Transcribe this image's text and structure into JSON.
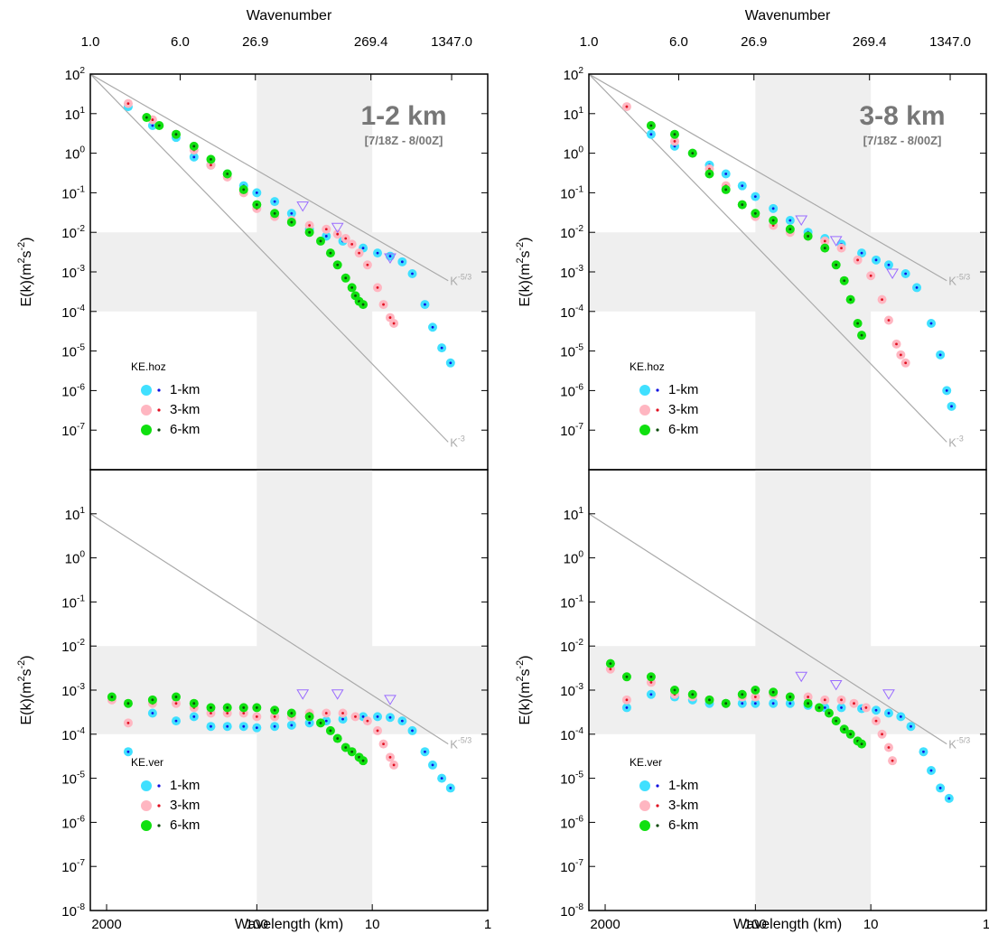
{
  "chart_data": [
    {
      "type": "scatter",
      "title": "1-2 km",
      "subtitle": "[7/18Z - 8/00Z]",
      "x2label": "Wavenumber",
      "ylabel": "E(k)(m^{2}s^{-2})",
      "legend_title": "KE.hoz",
      "xlim": [
        2767,
        1
      ],
      "x2lim": [
        1,
        2767
      ],
      "ylim": [
        1e-08,
        100
      ],
      "log_x": true,
      "log_y": true,
      "x2ticks": [
        {
          "value": 1,
          "label": "1.0"
        },
        {
          "value": 6,
          "label": "6.0"
        },
        26.9,
        269.4,
        {
          "value": 1347,
          "label": "1347.0"
        }
      ],
      "yticks": [
        {
          "value": 1e-07,
          "label": "10^{-7}"
        },
        {
          "value": 1e-06,
          "label": "10^{-6}"
        },
        {
          "value": 1e-05,
          "label": "10^{-5}"
        },
        {
          "value": 0.0001,
          "label": "10^{-4}"
        },
        {
          "value": 0.001,
          "label": "10^{-3}"
        },
        {
          "value": 0.01,
          "label": "10^{-2}"
        },
        {
          "value": 0.1,
          "label": "10^{-1}"
        },
        {
          "value": 1,
          "label": "10^{0}"
        },
        {
          "value": 10,
          "label": "10^{1}"
        },
        {
          "value": 100,
          "label": "10^{2}"
        }
      ],
      "shade_x": [
        100,
        10
      ],
      "shade_y": [
        0.01,
        0.0001
      ],
      "shade_color": "#efefef",
      "reference_lines": [
        {
          "label": "K^{-5/3}",
          "x": [
            2767,
            2.2
          ],
          "y": [
            100,
            0.0006
          ]
        },
        {
          "label": "K^{-3}",
          "x": [
            2767,
            2.2
          ],
          "y": [
            100,
            5e-08
          ]
        }
      ],
      "markers": {
        "color": "#9a6cff",
        "x": [
          40,
          20,
          7
        ],
        "y": [
          0.045,
          0.013,
          0.0022
        ]
      },
      "series": [
        {
          "name": "1-km",
          "color": "#40e0ff",
          "dot_color": "#1010e0",
          "x": [
            1300,
            800,
            500,
            350,
            250,
            180,
            130,
            100,
            70,
            50,
            35,
            25,
            18,
            12,
            9,
            7,
            5.5,
            4.5,
            3.5,
            3,
            2.5,
            2.1
          ],
          "values": [
            15,
            5,
            2.5,
            0.8,
            0.5,
            0.3,
            0.15,
            0.1,
            0.06,
            0.03,
            0.012,
            0.008,
            0.006,
            0.004,
            0.003,
            0.0025,
            0.0018,
            0.0009,
            0.00015,
            4e-05,
            1.2e-05,
            5e-06
          ]
        },
        {
          "name": "3-km",
          "color": "#ffb6c1",
          "dot_color": "#e01020",
          "x": [
            1300,
            800,
            500,
            350,
            250,
            180,
            130,
            100,
            70,
            50,
            35,
            25,
            20,
            17,
            15,
            13,
            11,
            9,
            8,
            7,
            6.5
          ],
          "values": [
            18,
            7,
            3,
            1.2,
            0.5,
            0.25,
            0.1,
            0.04,
            0.025,
            0.02,
            0.015,
            0.012,
            0.009,
            0.007,
            0.005,
            0.003,
            0.0015,
            0.0004,
            0.00015,
            7e-05,
            5e-05
          ]
        },
        {
          "name": "6-km",
          "color": "#10e010",
          "dot_color": "#0a4a0a",
          "x": [
            900,
            700,
            500,
            350,
            250,
            180,
            130,
            100,
            70,
            50,
            35,
            28,
            23,
            20,
            17,
            15,
            14,
            13,
            12
          ],
          "values": [
            8,
            5,
            3,
            1.5,
            0.7,
            0.3,
            0.12,
            0.05,
            0.03,
            0.018,
            0.01,
            0.006,
            0.003,
            0.0015,
            0.0007,
            0.0004,
            0.00025,
            0.00018,
            0.00015
          ]
        }
      ]
    },
    {
      "type": "scatter",
      "title": "3-8 km",
      "subtitle": "[7/18Z - 8/00Z]",
      "x2label": "Wavenumber",
      "ylabel": "E(k)(m^{2}s^{-2})",
      "legend_title": "KE.hoz",
      "xlim": [
        2767,
        1
      ],
      "x2lim": [
        1,
        2767
      ],
      "ylim": [
        1e-08,
        100
      ],
      "log_x": true,
      "log_y": true,
      "x2ticks": [
        {
          "value": 1,
          "label": "1.0"
        },
        {
          "value": 6,
          "label": "6.0"
        },
        26.9,
        269.4,
        {
          "value": 1347,
          "label": "1347.0"
        }
      ],
      "yticks": [
        {
          "value": 1e-07,
          "label": "10^{-7}"
        },
        {
          "value": 1e-06,
          "label": "10^{-6}"
        },
        {
          "value": 1e-05,
          "label": "10^{-5}"
        },
        {
          "value": 0.0001,
          "label": "10^{-4}"
        },
        {
          "value": 0.001,
          "label": "10^{-3}"
        },
        {
          "value": 0.01,
          "label": "10^{-2}"
        },
        {
          "value": 0.1,
          "label": "10^{-1}"
        },
        {
          "value": 1,
          "label": "10^{0}"
        },
        {
          "value": 10,
          "label": "10^{1}"
        },
        {
          "value": 100,
          "label": "10^{2}"
        }
      ],
      "shade_x": [
        100,
        10
      ],
      "shade_y": [
        0.01,
        0.0001
      ],
      "shade_color": "#efefef",
      "reference_lines": [
        {
          "label": "K^{-5/3}",
          "x": [
            2767,
            2.2
          ],
          "y": [
            100,
            0.0006
          ]
        },
        {
          "label": "K^{-3}",
          "x": [
            2767,
            2.2
          ],
          "y": [
            100,
            5e-08
          ]
        }
      ],
      "markers": {
        "color": "#9a6cff",
        "x": [
          40,
          20,
          6.5
        ],
        "y": [
          0.02,
          0.006,
          0.0009
        ]
      },
      "series": [
        {
          "name": "1-km",
          "color": "#40e0ff",
          "dot_color": "#1010e0",
          "x": [
            800,
            500,
            350,
            250,
            180,
            130,
            100,
            70,
            50,
            35,
            25,
            18,
            12,
            9,
            7,
            5,
            4,
            3,
            2.5,
            2.2,
            2
          ],
          "values": [
            3,
            1.5,
            1,
            0.5,
            0.3,
            0.15,
            0.08,
            0.04,
            0.02,
            0.01,
            0.007,
            0.005,
            0.003,
            0.002,
            0.0015,
            0.0009,
            0.0004,
            5e-05,
            8e-06,
            1e-06,
            4e-07
          ]
        },
        {
          "name": "3-km",
          "color": "#ffb6c1",
          "dot_color": "#e01020",
          "x": [
            1300,
            800,
            500,
            350,
            250,
            180,
            130,
            100,
            70,
            50,
            35,
            25,
            18,
            13,
            10,
            8,
            7,
            6,
            5.5,
            5
          ],
          "values": [
            15,
            5,
            2,
            1,
            0.4,
            0.15,
            0.05,
            0.025,
            0.015,
            0.01,
            0.008,
            0.006,
            0.004,
            0.002,
            0.0008,
            0.0002,
            6e-05,
            1.5e-05,
            8e-06,
            5e-06
          ]
        },
        {
          "name": "6-km",
          "color": "#10e010",
          "dot_color": "#0a4a0a",
          "x": [
            800,
            500,
            350,
            250,
            180,
            130,
            100,
            70,
            50,
            35,
            25,
            20,
            17,
            15,
            13,
            12
          ],
          "values": [
            5,
            3,
            1,
            0.3,
            0.12,
            0.05,
            0.03,
            0.02,
            0.012,
            0.008,
            0.004,
            0.0015,
            0.0006,
            0.0002,
            5e-05,
            2.5e-05
          ]
        }
      ]
    },
    {
      "type": "scatter",
      "xlabel": "Wavelength (km)",
      "ylabel": "E(k)(m^{2}s^{-2})",
      "legend_title": "KE.ver",
      "xlim": [
        2767,
        1
      ],
      "ylim": [
        1e-08,
        100
      ],
      "log_x": true,
      "log_y": true,
      "xticks": [
        2000,
        100,
        10,
        1
      ],
      "yticks": [
        {
          "value": 1e-08,
          "label": "10^{-8}"
        },
        {
          "value": 1e-07,
          "label": "10^{-7}"
        },
        {
          "value": 1e-06,
          "label": "10^{-6}"
        },
        {
          "value": 1e-05,
          "label": "10^{-5}"
        },
        {
          "value": 0.0001,
          "label": "10^{-4}"
        },
        {
          "value": 0.001,
          "label": "10^{-3}"
        },
        {
          "value": 0.01,
          "label": "10^{-2}"
        },
        {
          "value": 0.1,
          "label": "10^{-1}"
        },
        {
          "value": 1,
          "label": "10^{0}"
        },
        {
          "value": 10,
          "label": "10^{1}"
        }
      ],
      "shade_x": [
        100,
        10
      ],
      "shade_y": [
        0.01,
        0.0001
      ],
      "shade_color": "#efefef",
      "reference_lines": [
        {
          "label": "K^{-5/3}",
          "x": [
            2767,
            2.2
          ],
          "y": [
            10,
            6e-05
          ]
        }
      ],
      "markers": {
        "color": "#9a6cff",
        "x": [
          40,
          20,
          7
        ],
        "y": [
          0.0008,
          0.0008,
          0.0006
        ]
      },
      "series": [
        {
          "name": "1-km",
          "color": "#40e0ff",
          "dot_color": "#1010e0",
          "x": [
            1300,
            800,
            500,
            350,
            250,
            180,
            130,
            100,
            70,
            50,
            35,
            25,
            18,
            12,
            9,
            7,
            5.5,
            4.5,
            3.5,
            3,
            2.5,
            2.1
          ],
          "values": [
            4e-05,
            0.0003,
            0.0002,
            0.00025,
            0.00015,
            0.00015,
            0.00015,
            0.00014,
            0.00015,
            0.00016,
            0.00018,
            0.0002,
            0.00022,
            0.00025,
            0.00025,
            0.00024,
            0.0002,
            0.00012,
            4e-05,
            2e-05,
            1e-05,
            6e-06
          ]
        },
        {
          "name": "3-km",
          "color": "#ffb6c1",
          "dot_color": "#e01020",
          "x": [
            1800,
            1300,
            800,
            500,
            350,
            250,
            180,
            130,
            100,
            70,
            50,
            35,
            25,
            18,
            14,
            11,
            9,
            8,
            7,
            6.5
          ],
          "values": [
            0.0006,
            0.00018,
            0.0005,
            0.0005,
            0.0004,
            0.0003,
            0.0003,
            0.0003,
            0.00025,
            0.00025,
            0.00025,
            0.0003,
            0.0003,
            0.0003,
            0.00025,
            0.0002,
            0.00012,
            6e-05,
            3e-05,
            2e-05
          ]
        },
        {
          "name": "6-km",
          "color": "#10e010",
          "dot_color": "#0a4a0a",
          "x": [
            1800,
            1300,
            800,
            500,
            350,
            250,
            180,
            130,
            100,
            70,
            50,
            35,
            28,
            23,
            20,
            17,
            15,
            13,
            12
          ],
          "values": [
            0.0007,
            0.0005,
            0.0006,
            0.0007,
            0.0005,
            0.0004,
            0.0004,
            0.0004,
            0.0004,
            0.00035,
            0.0003,
            0.00025,
            0.00018,
            0.00012,
            8e-05,
            5e-05,
            4e-05,
            3e-05,
            2.5e-05
          ]
        }
      ]
    },
    {
      "type": "scatter",
      "xlabel": "Wavelength (km)",
      "ylabel": "E(k)(m^{2}s^{-2})",
      "legend_title": "KE.ver",
      "xlim": [
        2767,
        1
      ],
      "ylim": [
        1e-08,
        100
      ],
      "log_x": true,
      "log_y": true,
      "xticks": [
        2000,
        100,
        10,
        1
      ],
      "yticks": [
        {
          "value": 1e-08,
          "label": "10^{-8}"
        },
        {
          "value": 1e-07,
          "label": "10^{-7}"
        },
        {
          "value": 1e-06,
          "label": "10^{-6}"
        },
        {
          "value": 1e-05,
          "label": "10^{-5}"
        },
        {
          "value": 0.0001,
          "label": "10^{-4}"
        },
        {
          "value": 0.001,
          "label": "10^{-3}"
        },
        {
          "value": 0.01,
          "label": "10^{-2}"
        },
        {
          "value": 0.1,
          "label": "10^{-1}"
        },
        {
          "value": 1,
          "label": "10^{0}"
        },
        {
          "value": 10,
          "label": "10^{1}"
        }
      ],
      "shade_x": [
        100,
        10
      ],
      "shade_y": [
        0.01,
        0.0001
      ],
      "shade_color": "#efefef",
      "reference_lines": [
        {
          "label": "K^{-5/3}",
          "x": [
            2767,
            2.2
          ],
          "y": [
            10,
            6e-05
          ]
        }
      ],
      "markers": {
        "color": "#9a6cff",
        "x": [
          40,
          20,
          7
        ],
        "y": [
          0.002,
          0.0013,
          0.0008
        ]
      },
      "series": [
        {
          "name": "1-km",
          "color": "#40e0ff",
          "dot_color": "#1010e0",
          "x": [
            1300,
            800,
            500,
            350,
            250,
            180,
            130,
            100,
            70,
            50,
            35,
            25,
            18,
            12,
            9,
            7,
            5.5,
            4.5,
            3.5,
            3,
            2.5,
            2.1
          ],
          "values": [
            0.0004,
            0.0008,
            0.0007,
            0.0006,
            0.0005,
            0.0005,
            0.0005,
            0.0005,
            0.0005,
            0.0005,
            0.00045,
            0.0004,
            0.0004,
            0.00038,
            0.00035,
            0.0003,
            0.00025,
            0.00015,
            4e-05,
            1.5e-05,
            6e-06,
            3.5e-06
          ]
        },
        {
          "name": "3-km",
          "color": "#ffb6c1",
          "dot_color": "#e01020",
          "x": [
            1800,
            1300,
            800,
            500,
            350,
            250,
            180,
            130,
            100,
            70,
            50,
            35,
            25,
            18,
            14,
            11,
            9,
            8,
            7,
            6.5
          ],
          "values": [
            0.003,
            0.0006,
            0.0015,
            0.0008,
            0.0007,
            0.0006,
            0.0005,
            0.0007,
            0.0007,
            0.0008,
            0.0007,
            0.0007,
            0.0006,
            0.0006,
            0.0005,
            0.0004,
            0.0002,
            0.0001,
            5e-05,
            2.5e-05
          ]
        },
        {
          "name": "6-km",
          "color": "#10e010",
          "dot_color": "#0a4a0a",
          "x": [
            1800,
            1300,
            800,
            500,
            350,
            250,
            180,
            130,
            100,
            70,
            50,
            35,
            28,
            23,
            20,
            17,
            15,
            13,
            12
          ],
          "values": [
            0.004,
            0.002,
            0.002,
            0.001,
            0.0008,
            0.0006,
            0.0005,
            0.0008,
            0.001,
            0.0009,
            0.0007,
            0.0005,
            0.0004,
            0.0003,
            0.0002,
            0.00013,
            0.0001,
            7e-05,
            6e-05
          ]
        }
      ]
    }
  ]
}
